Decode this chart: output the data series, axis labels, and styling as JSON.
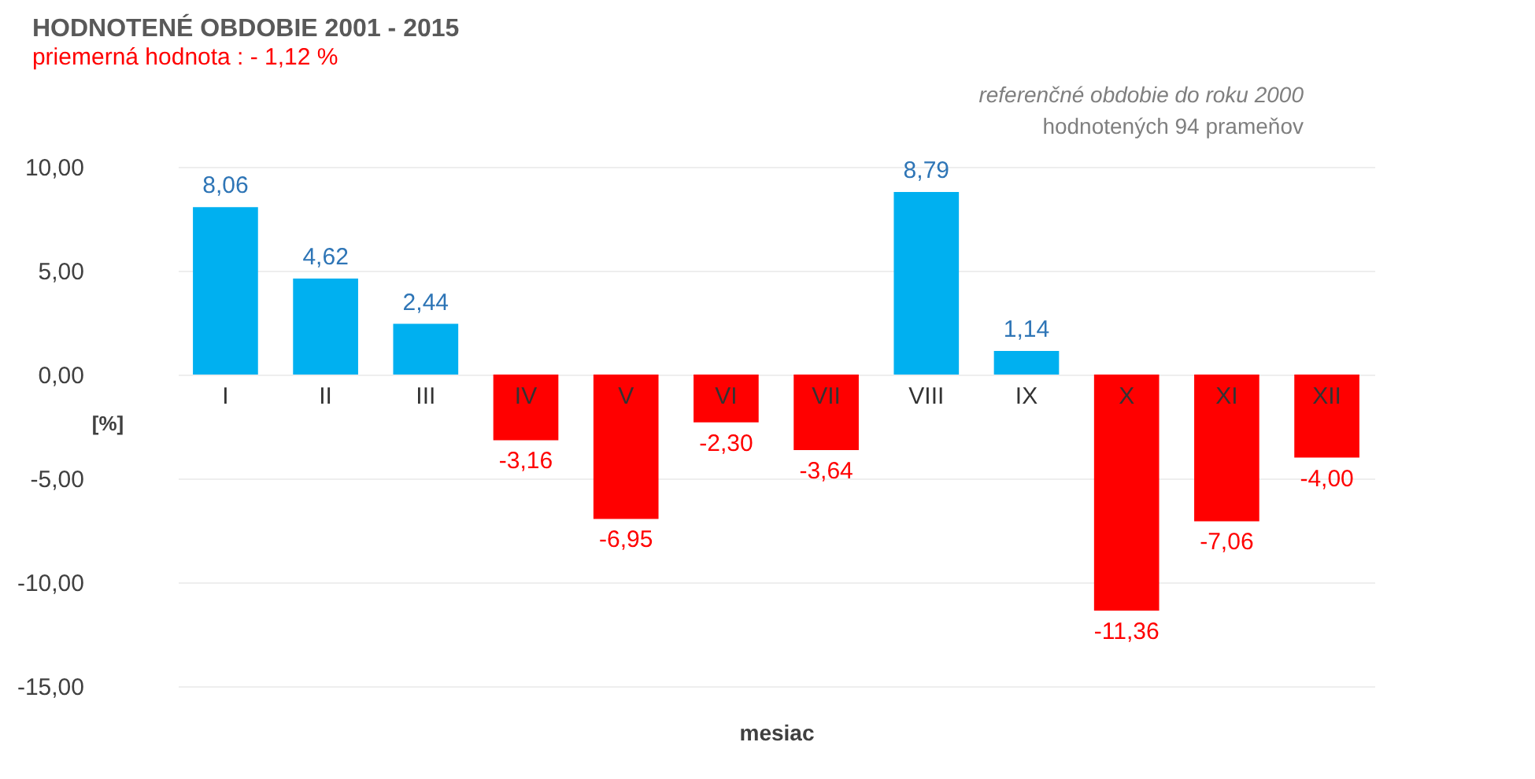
{
  "chart_data": {
    "type": "bar",
    "title": "HODNOTENÉ   OBDOBIE  2001 - 2015",
    "subtitle": "priemerná hodnota : -  1,12 %",
    "xlabel": "mesiac",
    "ylabel": "[%]",
    "annotations": [
      "referenčné  obdobie do roku  2000",
      "hodnotených  94  prameňov"
    ],
    "categories": [
      "I",
      "II",
      "III",
      "IV",
      "V",
      "VI",
      "VII",
      "VIII",
      "IX",
      "X",
      "XI",
      "XII"
    ],
    "values": [
      8.06,
      4.62,
      2.44,
      -3.16,
      -6.95,
      -2.3,
      -3.64,
      8.79,
      1.14,
      -11.36,
      -7.06,
      -4.0
    ],
    "colors": [
      "#00b0f0",
      "#00b0f0",
      "#00b0f0",
      "#ff0000",
      "#ff0000",
      "#ff0000",
      "#ff0000",
      "#00b0f0",
      "#00b0f0",
      "#ff0000",
      "#ff0000",
      "#ff0000"
    ],
    "value_labels": [
      "8,06",
      "4,62",
      "2,44",
      "-3,16",
      "-6,95",
      "-2,30",
      "-3,64",
      "8,79",
      "1,14",
      "-11,36",
      "-7,06",
      "-4,00"
    ],
    "ylim": [
      -15,
      10
    ],
    "yticks": [
      {
        "value": -15,
        "label": "-15,00"
      },
      {
        "value": -10,
        "label": "-10,00"
      },
      {
        "value": -5,
        "label": "-5,00"
      },
      {
        "value": 0,
        "label": "0,00"
      },
      {
        "value": 5,
        "label": "5,00"
      },
      {
        "value": 10,
        "label": "10,00"
      }
    ],
    "grid": "y"
  }
}
